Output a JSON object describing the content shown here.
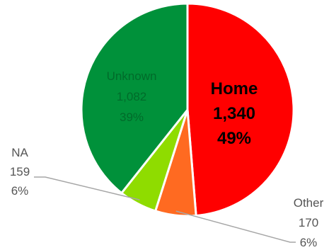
{
  "chart_data": {
    "type": "pie",
    "title": "",
    "legend": "none",
    "slices": [
      {
        "label": "Home",
        "value": 1340,
        "value_text": "1,340",
        "percent_text": "49%",
        "color": "#ff0000",
        "label_color": "#000000",
        "bold": true
      },
      {
        "label": "Other",
        "value": 170,
        "value_text": "170",
        "percent_text": "6%",
        "color": "#ff6a21",
        "label_color": "#555555",
        "bold": false
      },
      {
        "label": "NA",
        "value": 159,
        "value_text": "159",
        "percent_text": "6%",
        "color": "#8fdc00",
        "label_color": "#555555",
        "bold": false
      },
      {
        "label": "Unknown",
        "value": 1082,
        "value_text": "1,082",
        "percent_text": "39%",
        "color": "#00913a",
        "label_color": "#006b2a",
        "bold": false
      }
    ]
  }
}
